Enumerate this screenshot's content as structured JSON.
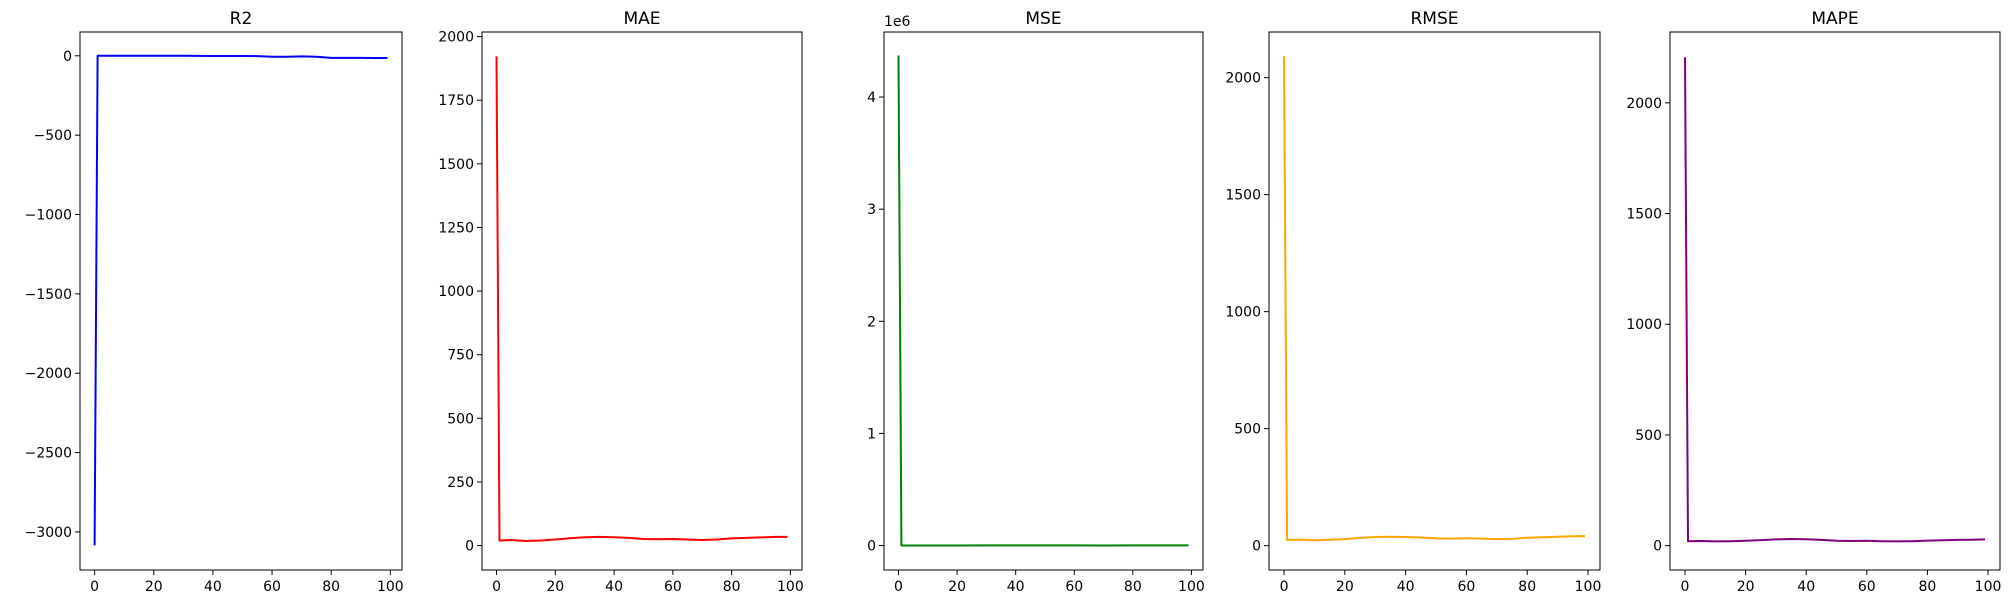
{
  "chart_data": [
    {
      "type": "line",
      "title": "R2",
      "xlabel": "",
      "ylabel": "",
      "color": "#0000ff",
      "xlim": [
        -4.95,
        103.95
      ],
      "ylim": [
        -3240,
        150
      ],
      "xticks": [
        0,
        20,
        40,
        60,
        80,
        100
      ],
      "yticks": [
        0,
        -500,
        -1000,
        -1500,
        -2000,
        -2500,
        -3000
      ],
      "ytick_labels": [
        "0",
        "−500",
        "−1000",
        "−1500",
        "−2000",
        "−2500",
        "−3000"
      ],
      "offset_text": "",
      "x": [
        0,
        1,
        5,
        10,
        20,
        30,
        40,
        50,
        55,
        60,
        65,
        70,
        75,
        80,
        85,
        90,
        95,
        99
      ],
      "y": [
        -3085,
        0,
        0,
        0,
        0,
        0,
        -1,
        -1,
        -2,
        -6,
        -6,
        -4,
        -6,
        -13,
        -13,
        -13,
        -14,
        -14
      ]
    },
    {
      "type": "line",
      "title": "MAE",
      "xlabel": "",
      "ylabel": "",
      "color": "#ff0000",
      "xlim": [
        -4.95,
        103.95
      ],
      "ylim": [
        -96,
        2018
      ],
      "xticks": [
        0,
        20,
        40,
        60,
        80,
        100
      ],
      "yticks": [
        0,
        250,
        500,
        750,
        1000,
        1250,
        1500,
        1750,
        2000
      ],
      "ytick_labels": [
        "0",
        "250",
        "500",
        "750",
        "1000",
        "1250",
        "1500",
        "1750",
        "2000"
      ],
      "offset_text": "",
      "x": [
        0,
        1,
        5,
        10,
        15,
        20,
        25,
        30,
        35,
        40,
        45,
        50,
        55,
        60,
        65,
        70,
        75,
        80,
        85,
        90,
        95,
        99
      ],
      "y": [
        1922,
        20,
        22,
        18,
        20,
        24,
        29,
        33,
        34,
        33,
        30,
        26,
        25,
        26,
        24,
        22,
        24,
        28,
        30,
        32,
        34,
        34
      ]
    },
    {
      "type": "line",
      "title": "MSE",
      "xlabel": "",
      "ylabel": "",
      "color": "#008000",
      "xlim": [
        -4.95,
        103.95
      ],
      "ylim": [
        -0.218,
        4.58
      ],
      "xticks": [
        0,
        20,
        40,
        60,
        80,
        100
      ],
      "yticks": [
        0,
        1,
        2,
        3,
        4
      ],
      "ytick_labels": [
        "0",
        "1",
        "2",
        "3",
        "4"
      ],
      "offset_text": "1e6",
      "x": [
        0,
        1,
        10,
        20,
        30,
        40,
        50,
        60,
        70,
        80,
        90,
        99
      ],
      "y": [
        4.37,
        0.0006,
        0.0006,
        0.0009,
        0.0011,
        0.0012,
        0.001,
        0.001,
        0.0009,
        0.001,
        0.0012,
        0.0013
      ]
    },
    {
      "type": "line",
      "title": "RMSE",
      "xlabel": "",
      "ylabel": "",
      "color": "#ffa500",
      "xlim": [
        -4.95,
        103.95
      ],
      "ylim": [
        -104,
        2195
      ],
      "xticks": [
        0,
        20,
        40,
        60,
        80,
        100
      ],
      "yticks": [
        0,
        500,
        1000,
        1500,
        2000
      ],
      "ytick_labels": [
        "0",
        "500",
        "1000",
        "1500",
        "2000"
      ],
      "offset_text": "",
      "x": [
        0,
        1,
        5,
        10,
        15,
        20,
        25,
        30,
        35,
        40,
        45,
        50,
        55,
        60,
        65,
        70,
        75,
        80,
        85,
        90,
        95,
        99
      ],
      "y": [
        2091,
        24,
        26,
        23,
        25,
        28,
        33,
        37,
        38,
        37,
        35,
        31,
        30,
        32,
        30,
        28,
        29,
        34,
        36,
        38,
        40,
        41
      ]
    },
    {
      "type": "line",
      "title": "MAPE",
      "xlabel": "",
      "ylabel": "",
      "color": "#800080",
      "xlim": [
        -4.95,
        103.95
      ],
      "ylim": [
        -110,
        2320
      ],
      "xticks": [
        0,
        20,
        40,
        60,
        80,
        100
      ],
      "yticks": [
        0,
        500,
        1000,
        1500,
        2000
      ],
      "ytick_labels": [
        "0",
        "500",
        "1000",
        "1500",
        "2000"
      ],
      "offset_text": "",
      "x": [
        0,
        1,
        5,
        10,
        15,
        20,
        25,
        30,
        35,
        40,
        45,
        50,
        55,
        60,
        65,
        70,
        75,
        80,
        85,
        90,
        95,
        99
      ],
      "y": [
        2206,
        20,
        21,
        19,
        20,
        22,
        25,
        28,
        30,
        29,
        26,
        22,
        21,
        22,
        20,
        19,
        20,
        23,
        24,
        26,
        27,
        28
      ]
    }
  ]
}
